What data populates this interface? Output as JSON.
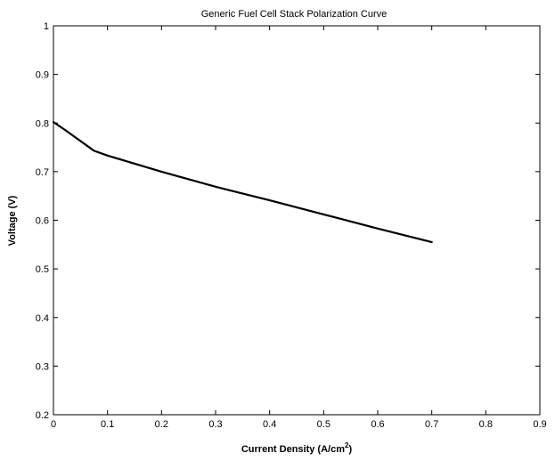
{
  "chart_data": {
    "type": "line",
    "title": "Generic Fuel Cell Stack Polarization Curve",
    "xlabel": "Current Density (A/cm",
    "xlabel_sup": "2",
    "xlabel_end": ")",
    "ylabel": "Voltage (V)",
    "xlim": [
      0,
      0.9
    ],
    "ylim": [
      0.2,
      1.0
    ],
    "xticks": [
      0,
      0.1,
      0.2,
      0.3,
      0.4,
      0.5,
      0.6,
      0.7,
      0.8,
      0.9
    ],
    "xtick_labels": [
      "0",
      "0.1",
      "0.2",
      "0.3",
      "0.4",
      "0.5",
      "0.6",
      "0.7",
      "0.8",
      "0.9"
    ],
    "yticks": [
      0.2,
      0.3,
      0.4,
      0.5,
      0.6,
      0.7,
      0.8,
      0.9,
      1.0
    ],
    "ytick_labels": [
      "0.2",
      "0.3",
      "0.4",
      "0.5",
      "0.6",
      "0.7",
      "0.8",
      "0.9",
      "1"
    ],
    "grid": false,
    "series": [
      {
        "x": [
          0,
          0.02,
          0.04,
          0.06,
          0.075,
          0.1,
          0.2,
          0.3,
          0.4,
          0.5,
          0.6,
          0.7
        ],
        "y": [
          0.802,
          0.787,
          0.771,
          0.755,
          0.743,
          0.733,
          0.7,
          0.669,
          0.641,
          0.612,
          0.583,
          0.555
        ],
        "color": "#000000"
      }
    ]
  }
}
